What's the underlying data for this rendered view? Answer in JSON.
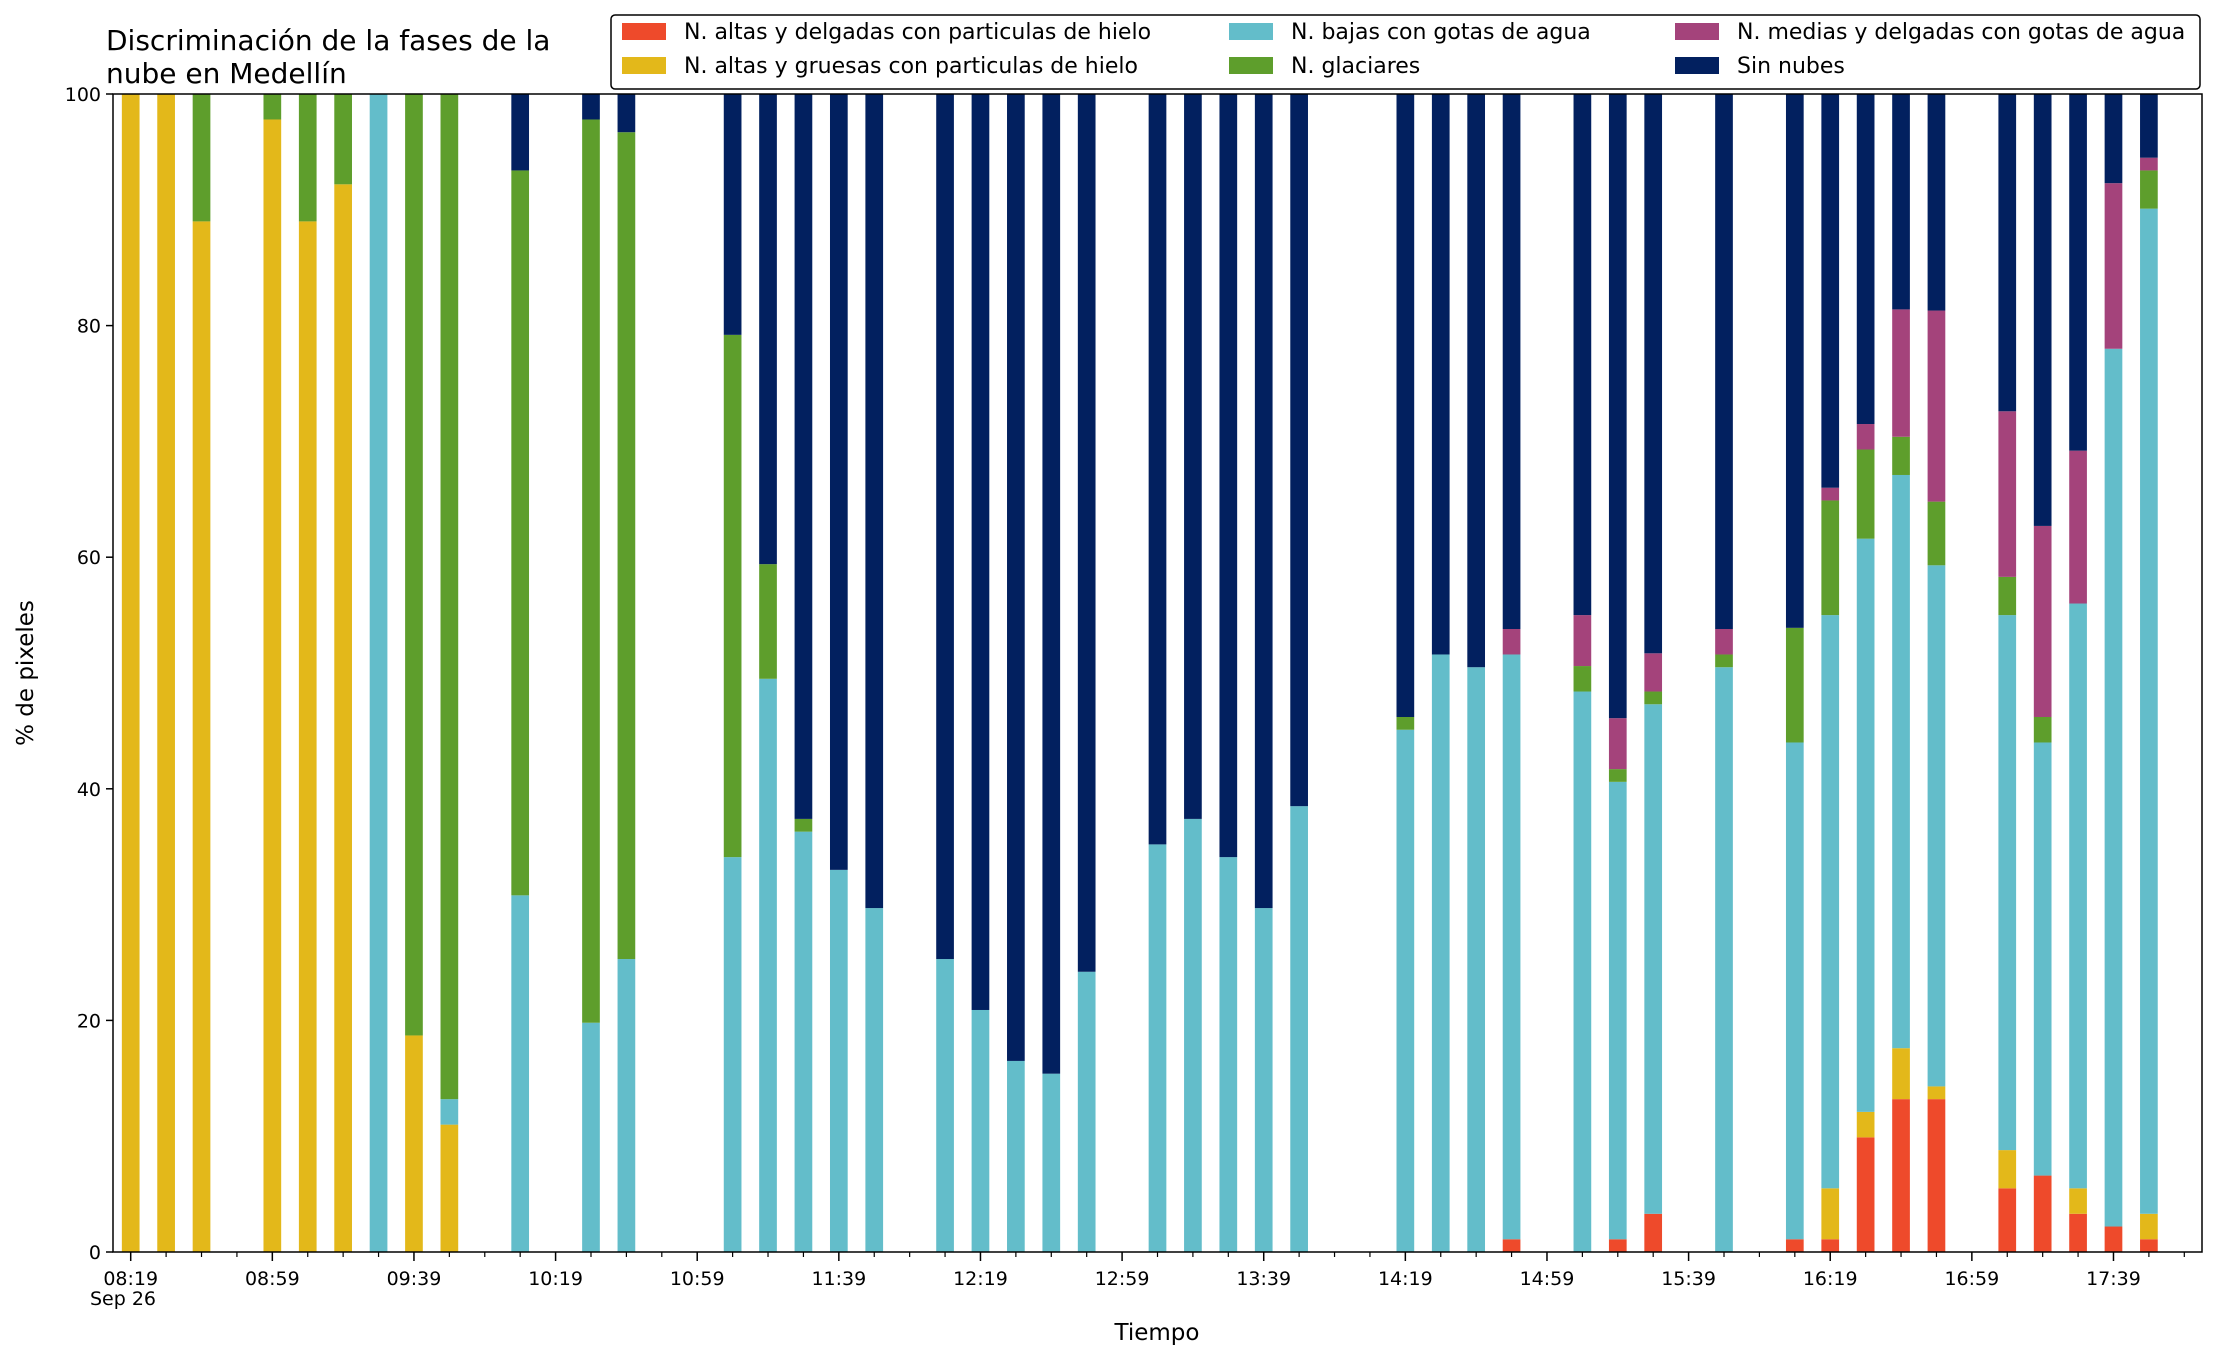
{
  "chart_data": {
    "type": "bar",
    "stacked": true,
    "title": "Discriminación de la fases de la\nnube en Medellín",
    "xlabel": "Tiempo",
    "ylabel": "% de pixeles",
    "ylim": [
      0,
      100
    ],
    "yticks": [
      0,
      20,
      40,
      60,
      80,
      100
    ],
    "x_range_minutes": [
      "08:14",
      "18:04"
    ],
    "bar_width_minutes": 5,
    "x_date_label": "Sep 26",
    "xtick_labels": [
      "08:19",
      "08:59",
      "09:39",
      "10:19",
      "10:59",
      "11:39",
      "12:19",
      "12:59",
      "13:39",
      "14:19",
      "14:59",
      "15:39",
      "16:19",
      "16:59",
      "17:39"
    ],
    "minor_tick_step_minutes": 10,
    "grid": false,
    "legend_position": "top-right",
    "series": [
      {
        "name": "N. altas y delgadas con particulas de hielo",
        "color": "#EE4A2B"
      },
      {
        "name": "N. altas y gruesas con particulas de hielo",
        "color": "#E3B81A"
      },
      {
        "name": "N. bajas con gotas de agua",
        "color": "#63BDCA"
      },
      {
        "name": "N. glaciares",
        "color": "#5E9E2C"
      },
      {
        "name": "N. medias y delgadas con gotas de agua",
        "color": "#A4437B"
      },
      {
        "name": "Sin nubes",
        "color": "#02205F"
      }
    ],
    "bars": [
      {
        "x": "08:19",
        "values": [
          0,
          100,
          0,
          0,
          0,
          0
        ]
      },
      {
        "x": "08:29",
        "values": [
          0,
          100,
          0,
          0,
          0,
          0
        ]
      },
      {
        "x": "08:39",
        "values": [
          0,
          89,
          0,
          11,
          0,
          0
        ]
      },
      {
        "x": "08:59",
        "values": [
          0,
          97.8,
          0,
          2.2,
          0,
          0
        ]
      },
      {
        "x": "09:09",
        "values": [
          0,
          89,
          0,
          11,
          0,
          0
        ]
      },
      {
        "x": "09:19",
        "values": [
          0,
          92.2,
          0,
          7.8,
          0,
          0
        ]
      },
      {
        "x": "09:29",
        "values": [
          0,
          0,
          100,
          0,
          0,
          0
        ]
      },
      {
        "x": "09:39",
        "values": [
          0,
          18.7,
          0,
          81.3,
          0,
          0
        ]
      },
      {
        "x": "09:49",
        "values": [
          0,
          11,
          2.2,
          86.8,
          0,
          0
        ]
      },
      {
        "x": "10:09",
        "values": [
          0,
          0,
          30.8,
          62.6,
          0,
          6.6
        ]
      },
      {
        "x": "10:29",
        "values": [
          0,
          0,
          19.8,
          78,
          0,
          2.2
        ]
      },
      {
        "x": "10:39",
        "values": [
          0,
          0,
          25.3,
          71.4,
          0,
          3.3
        ]
      },
      {
        "x": "11:09",
        "values": [
          0,
          0,
          34.1,
          45.1,
          0,
          20.8
        ]
      },
      {
        "x": "11:19",
        "values": [
          0,
          0,
          49.5,
          9.9,
          0,
          40.6
        ]
      },
      {
        "x": "11:29",
        "values": [
          0,
          0,
          36.3,
          1.1,
          0,
          62.6
        ]
      },
      {
        "x": "11:39",
        "values": [
          0,
          0,
          33,
          0,
          0,
          67
        ]
      },
      {
        "x": "11:49",
        "values": [
          0,
          0,
          29.7,
          0,
          0,
          70.3
        ]
      },
      {
        "x": "12:09",
        "values": [
          0,
          0,
          25.3,
          0,
          0,
          74.7
        ]
      },
      {
        "x": "12:19",
        "values": [
          0,
          0,
          20.9,
          0,
          0,
          79.1
        ]
      },
      {
        "x": "12:29",
        "values": [
          0,
          0,
          16.5,
          0,
          0,
          83.5
        ]
      },
      {
        "x": "12:39",
        "values": [
          0,
          0,
          15.4,
          0,
          0,
          84.6
        ]
      },
      {
        "x": "12:49",
        "values": [
          0,
          0,
          24.2,
          0,
          0,
          75.8
        ]
      },
      {
        "x": "13:09",
        "values": [
          0,
          0,
          35.2,
          0,
          0,
          64.8
        ]
      },
      {
        "x": "13:19",
        "values": [
          0,
          0,
          37.4,
          0,
          0,
          62.6
        ]
      },
      {
        "x": "13:29",
        "values": [
          0,
          0,
          34.1,
          0,
          0,
          65.9
        ]
      },
      {
        "x": "13:39",
        "values": [
          0,
          0,
          29.7,
          0,
          0,
          70.3
        ]
      },
      {
        "x": "13:49",
        "values": [
          0,
          0,
          38.5,
          0,
          0,
          61.5
        ]
      },
      {
        "x": "14:19",
        "values": [
          0,
          0,
          45.1,
          1.1,
          0,
          53.8
        ]
      },
      {
        "x": "14:29",
        "values": [
          0,
          0,
          51.6,
          0,
          0,
          48.4
        ]
      },
      {
        "x": "14:39",
        "values": [
          0,
          0,
          50.5,
          0,
          0,
          49.5
        ]
      },
      {
        "x": "14:49",
        "values": [
          1.1,
          0,
          50.5,
          0,
          2.2,
          46.2
        ]
      },
      {
        "x": "15:09",
        "values": [
          0,
          0,
          48.4,
          2.2,
          4.4,
          45
        ]
      },
      {
        "x": "15:19",
        "values": [
          1.1,
          0,
          39.5,
          1.1,
          4.4,
          53.9
        ]
      },
      {
        "x": "15:29",
        "values": [
          3.3,
          0,
          44,
          1.1,
          3.3,
          48.3
        ]
      },
      {
        "x": "15:49",
        "values": [
          0,
          0,
          50.5,
          1.1,
          2.2,
          46.2
        ]
      },
      {
        "x": "16:09",
        "values": [
          1.1,
          0,
          42.9,
          9.9,
          0,
          46.1
        ]
      },
      {
        "x": "16:19",
        "values": [
          1.1,
          4.4,
          49.5,
          9.9,
          1.1,
          34
        ]
      },
      {
        "x": "16:29",
        "values": [
          9.9,
          2.2,
          49.5,
          7.7,
          2.2,
          28.5
        ]
      },
      {
        "x": "16:39",
        "values": [
          13.2,
          4.4,
          49.5,
          3.3,
          11,
          18.6
        ]
      },
      {
        "x": "16:49",
        "values": [
          13.2,
          1.1,
          45,
          5.5,
          16.5,
          18.7
        ]
      },
      {
        "x": "17:09",
        "values": [
          5.5,
          3.3,
          46.2,
          3.3,
          14.3,
          27.4
        ]
      },
      {
        "x": "17:19",
        "values": [
          6.6,
          0,
          37.4,
          2.2,
          16.5,
          37.3
        ]
      },
      {
        "x": "17:29",
        "values": [
          3.3,
          2.2,
          50.5,
          0,
          13.2,
          30.8
        ]
      },
      {
        "x": "17:39",
        "values": [
          2.2,
          0,
          75.8,
          0,
          14.3,
          7.7
        ]
      },
      {
        "x": "17:49",
        "values": [
          1.1,
          2.2,
          86.8,
          3.3,
          1.1,
          5.5
        ]
      }
    ]
  }
}
